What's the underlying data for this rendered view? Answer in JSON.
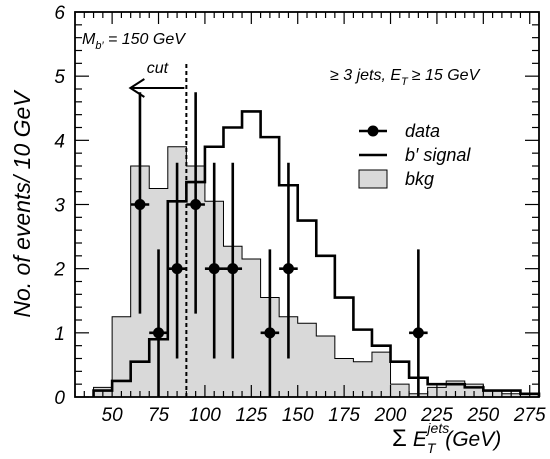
{
  "chart_data": {
    "type": "histogram",
    "xlabel": {
      "sigma": "Σ",
      "e": "E",
      "sub": "T",
      "sup": "jets",
      "unit": "(GeV)"
    },
    "ylabel": "No. of events/ 10 GeV",
    "xlim": [
      30,
      280
    ],
    "ylim": [
      0,
      6
    ],
    "bin_width": 10,
    "x_ticks": [
      50,
      75,
      100,
      125,
      150,
      175,
      200,
      225,
      250,
      275
    ],
    "y_ticks": [
      0,
      1,
      2,
      3,
      4,
      5,
      6
    ],
    "annotations": {
      "mass_label_main": "M",
      "mass_label_sub": "b′",
      "mass_label_rest": " = 150 GeV",
      "cut_label": "cut",
      "cut_x": 90,
      "selection_a": "≥ 3 jets, E",
      "selection_sub": "T",
      "selection_b": "≥ 15 GeV"
    },
    "legend": {
      "position": "right",
      "items": [
        {
          "kind": "data",
          "label": "data"
        },
        {
          "kind": "signal",
          "label": "b′ signal"
        },
        {
          "kind": "bkg",
          "label": "bkg"
        }
      ]
    },
    "series": {
      "bkg": {
        "edges": [
          40,
          50,
          60,
          70,
          80,
          90,
          100,
          110,
          120,
          130,
          140,
          150,
          160,
          170,
          180,
          190,
          200,
          210,
          220,
          230,
          240,
          250,
          260,
          270,
          280
        ],
        "values": [
          0.15,
          1.25,
          3.6,
          3.25,
          3.9,
          3.6,
          3.05,
          2.35,
          2.15,
          1.55,
          1.25,
          1.15,
          0.95,
          0.6,
          0.55,
          0.7,
          0.2,
          0.05,
          0.15,
          0.25,
          0.2,
          0.1,
          0.05,
          0.05
        ]
      },
      "signal": {
        "edges": [
          40,
          50,
          60,
          70,
          80,
          90,
          100,
          110,
          120,
          130,
          140,
          150,
          160,
          170,
          180,
          190,
          200,
          210,
          220,
          230,
          240,
          250,
          260,
          270,
          280
        ],
        "values": [
          0.1,
          0.25,
          0.55,
          0.9,
          3.05,
          3.35,
          3.9,
          4.2,
          4.45,
          4.05,
          3.3,
          2.75,
          2.2,
          1.55,
          1.05,
          0.8,
          0.55,
          0.3,
          0.2,
          0.2,
          0.15,
          0.1,
          0.1,
          0.05
        ]
      },
      "data": {
        "points": [
          {
            "x": 65,
            "y": 3,
            "err_lo": 1.7,
            "err_hi": 1.75
          },
          {
            "x": 75,
            "y": 1,
            "err_lo": 1.0,
            "err_hi": 1.3
          },
          {
            "x": 85,
            "y": 2,
            "err_lo": 1.4,
            "err_hi": 1.65
          },
          {
            "x": 95,
            "y": 3,
            "err_lo": 1.7,
            "err_hi": 1.75
          },
          {
            "x": 105,
            "y": 2,
            "err_lo": 1.4,
            "err_hi": 1.65
          },
          {
            "x": 115,
            "y": 2,
            "err_lo": 1.4,
            "err_hi": 1.65
          },
          {
            "x": 135,
            "y": 1,
            "err_lo": 1.0,
            "err_hi": 1.3
          },
          {
            "x": 145,
            "y": 2,
            "err_lo": 1.4,
            "err_hi": 1.65
          },
          {
            "x": 215,
            "y": 1,
            "err_lo": 1.0,
            "err_hi": 1.3
          }
        ]
      }
    }
  }
}
